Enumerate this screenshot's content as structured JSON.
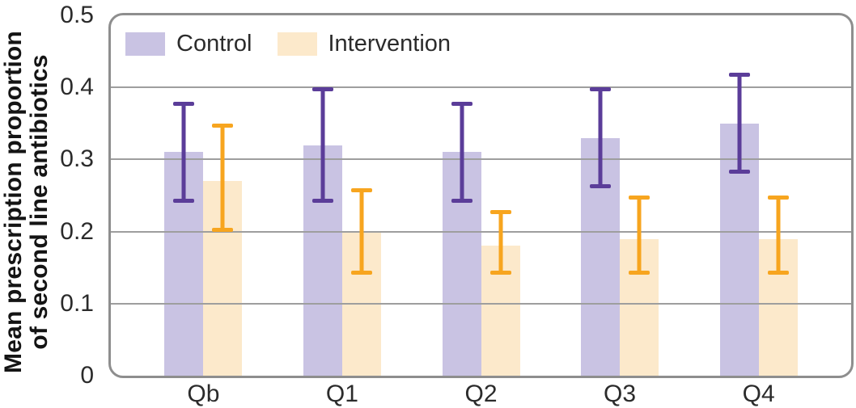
{
  "chart_data": {
    "type": "bar",
    "title": "",
    "xlabel": "",
    "ylabel": "Mean prescription proportion of second line antibiotics",
    "ylabel_lines": [
      "Mean prescription proportion",
      "of second line antibiotics"
    ],
    "categories": [
      "Qb",
      "Q1",
      "Q2",
      "Q3",
      "Q4"
    ],
    "ylim": [
      0,
      0.5
    ],
    "yticks": [
      0,
      0.1,
      0.2,
      0.3,
      0.4,
      0.5
    ],
    "ytick_labels": [
      "0",
      "0.1",
      "0.2",
      "0.3",
      "0.4",
      "0.5"
    ],
    "grid": "horizontal-only",
    "legend_position": "top-left-inside",
    "error_bars": true,
    "series": [
      {
        "name": "Control",
        "bar_color": "#c9c3e3",
        "error_color": "#5b3d99",
        "values": [
          0.31,
          0.32,
          0.31,
          0.33,
          0.35
        ],
        "error_low": [
          0.24,
          0.24,
          0.24,
          0.26,
          0.28
        ],
        "error_high": [
          0.38,
          0.4,
          0.38,
          0.4,
          0.42
        ]
      },
      {
        "name": "Intervention",
        "bar_color": "#fce9cb",
        "error_color": "#f7a51f",
        "values": [
          0.27,
          0.2,
          0.18,
          0.19,
          0.19
        ],
        "error_low": [
          0.2,
          0.14,
          0.14,
          0.14,
          0.14
        ],
        "error_high": [
          0.35,
          0.26,
          0.23,
          0.25,
          0.25
        ]
      }
    ],
    "colors": {
      "gridline": "#9e9e9e",
      "frame": "#8e8e8e",
      "text": "#2b2b2b",
      "title_text": "#141414",
      "background": "#ffffff"
    }
  }
}
